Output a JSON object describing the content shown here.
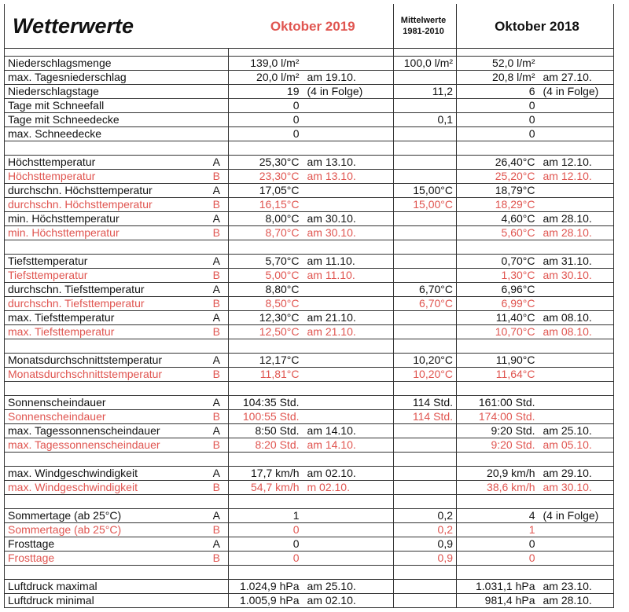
{
  "header": {
    "title": "Wetterwerte",
    "col_2019": "Oktober 2019",
    "col_2019_color": "#e05550",
    "col_mean": "Mittelwerte 1981-2010",
    "col_2018": "Oktober 2018"
  },
  "sections": [
    {
      "rows": [
        {
          "label": "Niederschlagsmenge",
          "v2019": "139,0 l/m²",
          "mean": "100,0 l/m²",
          "v2018": "52,0 l/m²"
        },
        {
          "label": "max. Tagesniederschlag",
          "v2019": "20,0 l/m²",
          "n2019": "am 19.10.",
          "v2018": "20,8 l/m²",
          "n2018": "am 27.10."
        },
        {
          "label": "Niederschlagstage",
          "v2019": "19",
          "n2019": "(4 in Folge)",
          "mean": "11,2",
          "v2018": "6",
          "n2018": "(4 in Folge)"
        },
        {
          "label": "Tage mit Schneefall",
          "v2019": "0",
          "v2018": "0"
        },
        {
          "label": "Tage mit Schneedecke",
          "v2019": "0",
          "mean": "0,1",
          "v2018": "0"
        },
        {
          "label": "max. Schneedecke",
          "v2019": "0",
          "v2018": "0"
        }
      ]
    },
    {
      "rows": [
        {
          "label": "Höchsttemperatur",
          "group": "A",
          "v2019": "25,30°C",
          "n2019": "am 13.10.",
          "v2018": "26,40°C",
          "n2018": "am 12.10."
        },
        {
          "label": "Höchsttemperatur",
          "group": "B",
          "color": "#e05550",
          "v2019": "23,30°C",
          "n2019": "am 13.10.",
          "v2018": "25,20°C",
          "n2018": "am 12.10."
        },
        {
          "label": "durchschn. Höchsttemperatur",
          "group": "A",
          "v2019": "17,05°C",
          "mean": "15,00°C",
          "v2018": "18,79°C"
        },
        {
          "label": "durchschn. Höchsttemperatur",
          "group": "B",
          "color": "#e05550",
          "v2019": "16,15°C",
          "mean": "15,00°C",
          "v2018": "18,29°C"
        },
        {
          "label": "min. Höchsttemperatur",
          "group": "A",
          "v2019": "8,00°C",
          "n2019": "am 30.10.",
          "v2018": "4,60°C",
          "n2018": "am 28.10."
        },
        {
          "label": "min. Höchsttemperatur",
          "group": "B",
          "color": "#e05550",
          "v2019": "8,70°C",
          "n2019": "am 30.10.",
          "v2018": "5,60°C",
          "n2018": "am 28.10."
        }
      ]
    },
    {
      "rows": [
        {
          "label": "Tiefsttemperatur",
          "group": "A",
          "v2019": "5,70°C",
          "n2019": "am 11.10.",
          "v2018": "0,70°C",
          "n2018": "am 31.10."
        },
        {
          "label": "Tiefsttemperatur",
          "group": "B",
          "color": "#e05550",
          "v2019": "5,00°C",
          "n2019": "am 11.10.",
          "v2018": "1,30°C",
          "n2018": "am 30.10."
        },
        {
          "label": "durchschn. Tiefsttemperatur",
          "group": "A",
          "v2019": "8,80°C",
          "mean": "6,70°C",
          "v2018": "6,96°C"
        },
        {
          "label": "durchschn. Tiefsttemperatur",
          "group": "B",
          "color": "#e05550",
          "v2019": "8,50°C",
          "mean": "6,70°C",
          "v2018": "6,99°C"
        },
        {
          "label": "max. Tiefsttemperatur",
          "group": "A",
          "v2019": "12,30°C",
          "n2019": "am 21.10.",
          "v2018": "11,40°C",
          "n2018": "am 08.10."
        },
        {
          "label": "max. Tiefsttemperatur",
          "group": "B",
          "color": "#e05550",
          "v2019": "12,50°C",
          "n2019": "am 21.10.",
          "v2018": "10,70°C",
          "n2018": "am 08.10."
        }
      ]
    },
    {
      "rows": [
        {
          "label": "Monatsdurchschnittstemperatur",
          "group": "A",
          "v2019": "12,17°C",
          "mean": "10,20°C",
          "v2018": "11,90°C"
        },
        {
          "label": "Monatsdurchschnittstemperatur",
          "group": "B",
          "color": "#e05550",
          "v2019": "11,81°C",
          "mean": "10,20°C",
          "v2018": "11,64°C"
        }
      ]
    },
    {
      "rows": [
        {
          "label": "Sonnenscheindauer",
          "group": "A",
          "v2019": "104:35 Std.",
          "mean": "114 Std.",
          "v2018": "161:00 Std."
        },
        {
          "label": "Sonnenscheindauer",
          "group": "B",
          "color": "#e05550",
          "v2019": "100:55 Std.",
          "mean": "114 Std.",
          "v2018": "174:00 Std."
        },
        {
          "label": "max. Tagessonnenscheindauer",
          "group": "A",
          "v2019": "8:50 Std.",
          "n2019": "am 14.10.",
          "v2018": "9:20 Std.",
          "n2018": "am 25.10."
        },
        {
          "label": "max. Tagessonnenscheindauer",
          "group": "B",
          "color": "#e05550",
          "v2019": "8:20 Std.",
          "n2019": "am 14.10.",
          "v2018": "9:20 Std.",
          "n2018": "am 05.10."
        }
      ]
    },
    {
      "rows": [
        {
          "label": "max. Windgeschwindigkeit",
          "group": "A",
          "v2019": "17,7 km/h",
          "n2019": "am 02.10.",
          "v2018": "20,9 km/h",
          "n2018": "am 29.10."
        },
        {
          "label": "max. Windgeschwindigkeit",
          "group": "B",
          "color": "#e05550",
          "v2019": "54,7 km/h",
          "n2019": "m 02.10.",
          "v2018": "38,6 km/h",
          "n2018": "am 30.10."
        }
      ]
    },
    {
      "rows": [
        {
          "label": "Sommertage (ab 25°C)",
          "group": "A",
          "v2019": "1",
          "mean": "0,2",
          "v2018": "4",
          "n2018": "(4 in Folge)"
        },
        {
          "label": "Sommertage (ab 25°C)",
          "group": "B",
          "color": "#e05550",
          "v2019": "0",
          "mean": "0,2",
          "v2018": "1"
        },
        {
          "label": "Frosttage",
          "group": "A",
          "v2019": "0",
          "mean": "0,9",
          "v2018": "0"
        },
        {
          "label": "Frosttage",
          "group": "B",
          "color": "#e05550",
          "v2019": "0",
          "mean": "0,9",
          "v2018": "0"
        }
      ]
    },
    {
      "rows": [
        {
          "label": "Luftdruck maximal",
          "v2019": "1.024,9 hPa",
          "n2019": "am 25.10.",
          "v2018": "1.031,1 hPa",
          "n2018": "am 23.10."
        },
        {
          "label": "Luftdruck minimal",
          "v2019": "1.005,9 hPa",
          "n2019": "am 02.10.",
          "v2018": "981,4 hPa",
          "n2018": "am 28.10."
        }
      ]
    }
  ]
}
